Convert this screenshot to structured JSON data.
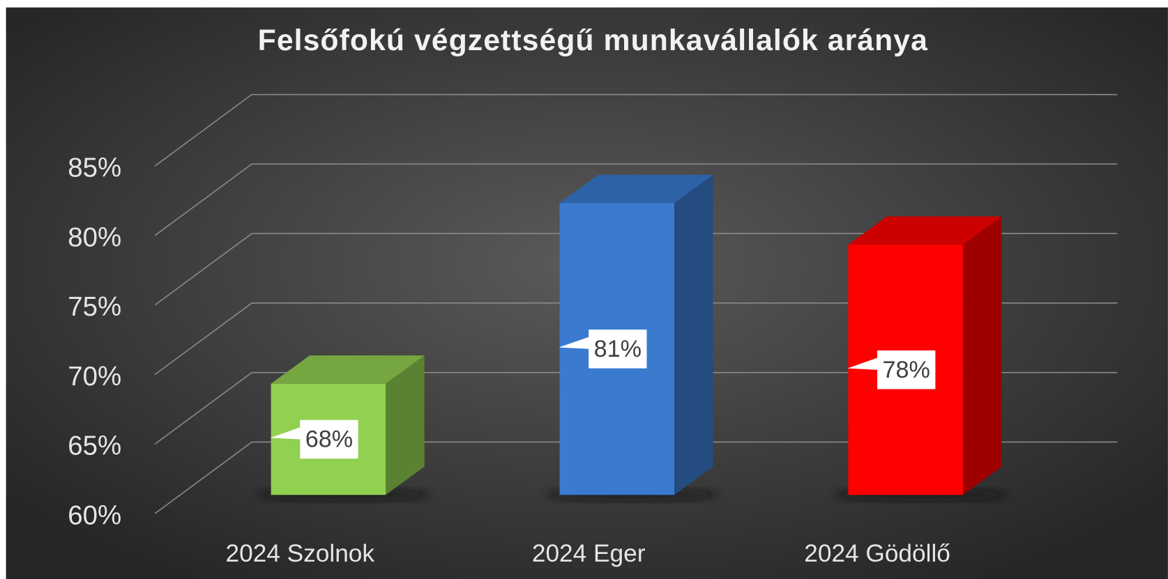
{
  "chart_data": {
    "type": "bar3d",
    "title": "Felsőfokú végzettségű munkavállalók aránya",
    "categories": [
      "2024 Szolnok",
      "2024 Eger",
      "2024 Gödöllő"
    ],
    "values": [
      68,
      81,
      78
    ],
    "value_labels": [
      "68%",
      "81%",
      "78%"
    ],
    "colors": [
      "#92d050",
      "#3a7bd0",
      "#ff0000"
    ],
    "ylim": [
      60,
      85
    ],
    "yticks": [
      {
        "value": 60,
        "label": "60%"
      },
      {
        "value": 65,
        "label": "65%"
      },
      {
        "value": 70,
        "label": "70%"
      },
      {
        "value": 75,
        "label": "75%"
      },
      {
        "value": 80,
        "label": "80%"
      },
      {
        "value": 85,
        "label": "85%"
      }
    ],
    "grid": true
  }
}
